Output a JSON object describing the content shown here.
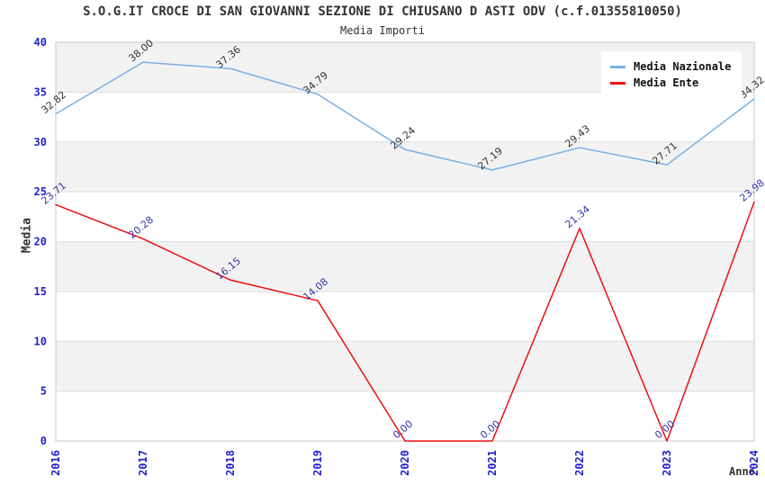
{
  "title": "S.O.G.IT CROCE DI SAN GIOVANNI SEZIONE DI CHIUSANO D ASTI ODV (c.f.01355810050)",
  "subtitle": "Media Importi",
  "axes": {
    "y_label": "Media",
    "x_label": "Anno"
  },
  "colors": {
    "nazionale_line": "#7aafe5",
    "ente_line": "#ee0f0f",
    "tick_label": "#2222cc",
    "nazionale_value_label": "#333333",
    "ente_value_label": "#3434aa",
    "band_gray": "#f2f2f2",
    "gridline": "#dcdcdc",
    "plot_border": "#c9c9c9",
    "title_text": "#333333"
  },
  "chart_data": {
    "type": "line",
    "title": "S.O.G.IT CROCE DI SAN GIOVANNI SEZIONE DI CHIUSANO D ASTI ODV (c.f.01355810050)",
    "subtitle": "Media Importi",
    "categories": [
      "2016",
      "2017",
      "2018",
      "2019",
      "2020",
      "2021",
      "2022",
      "2023",
      "2024"
    ],
    "series": [
      {
        "name": "Media Nazionale",
        "color": "#7aafe5",
        "label_color": "#333333",
        "values": [
          32.82,
          38.0,
          37.36,
          34.79,
          29.24,
          27.19,
          29.43,
          27.71,
          34.32
        ]
      },
      {
        "name": "Media Ente",
        "color": "#ee0f0f",
        "label_color": "#3434aa",
        "values": [
          23.71,
          20.28,
          16.15,
          14.08,
          0.0,
          0.0,
          21.34,
          0.0,
          23.98
        ]
      }
    ],
    "xlabel": "Anno",
    "ylabel": "Media",
    "ylim": [
      0,
      40
    ],
    "ytick_step": 5,
    "yticks": [
      0,
      5,
      10,
      15,
      20,
      25,
      30,
      35,
      40
    ],
    "grid": true,
    "bands_alternating": true,
    "legend_position": "top-right",
    "value_labels": "two-decimals-rotated"
  }
}
